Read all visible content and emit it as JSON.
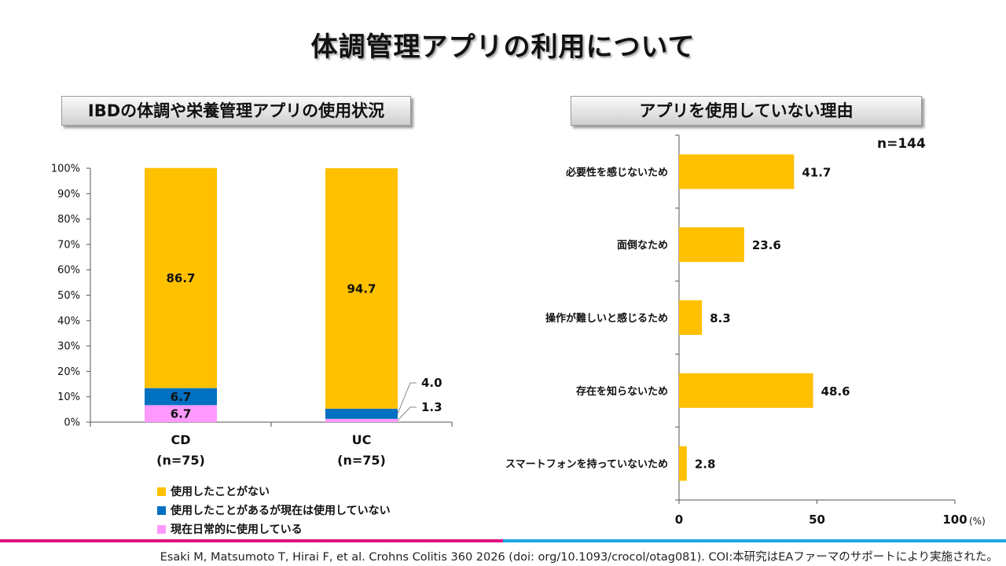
{
  "title": "体調管理アプリの利用について",
  "colors": {
    "never": "#FFC000",
    "stopped": "#0070C0",
    "current": "#FF99FF",
    "bar": "#FFC000"
  },
  "chart_data": [
    {
      "type": "bar",
      "stacked": true,
      "title": "IBDの体調や栄養管理アプリの使用状況",
      "categories": [
        "CD",
        "UC"
      ],
      "category_subtitles": [
        "(n=75)",
        "(n=75)"
      ],
      "ylim": [
        0,
        100
      ],
      "yticks": [
        "0%",
        "10%",
        "20%",
        "30%",
        "40%",
        "50%",
        "60%",
        "70%",
        "80%",
        "90%",
        "100%"
      ],
      "series": [
        {
          "name": "現在日常的に使用している",
          "values": [
            6.7,
            1.3
          ],
          "labels": [
            "6.7",
            "1.3"
          ]
        },
        {
          "name": "使用したことがあるが現在は使用していない",
          "values": [
            6.7,
            4.0
          ],
          "labels": [
            "6.7",
            "4.0"
          ]
        },
        {
          "name": "使用したことがない",
          "values": [
            86.7,
            94.7
          ],
          "labels": [
            "86.7",
            "94.7"
          ]
        }
      ],
      "legend": [
        "使用したことがない",
        "使用したことがあるが現在は使用していない",
        "現在日常的に使用している"
      ]
    },
    {
      "type": "bar",
      "orientation": "horizontal",
      "title": "アプリを使用していない理由",
      "annotation": "n=144",
      "categories": [
        "必要性を感じないため",
        "面倒なため",
        "操作が難しいと感じるため",
        "存在を知らないため",
        "スマートフォンを持っていないため"
      ],
      "values": [
        41.7,
        23.6,
        8.3,
        48.6,
        2.8
      ],
      "labels": [
        "41.7",
        "23.6",
        "8.3",
        "48.6",
        "2.8"
      ],
      "xlim": [
        0,
        100
      ],
      "xticks": [
        "0",
        "50",
        "100"
      ],
      "xunit": "(%)"
    }
  ],
  "citation": "Esaki M, Matsumoto T, Hirai F, et al. Crohns Colitis 360 2026 (doi: org/10.1093/crocol/otag081). COI:本研究はEAファーマのサポートにより実施された。"
}
